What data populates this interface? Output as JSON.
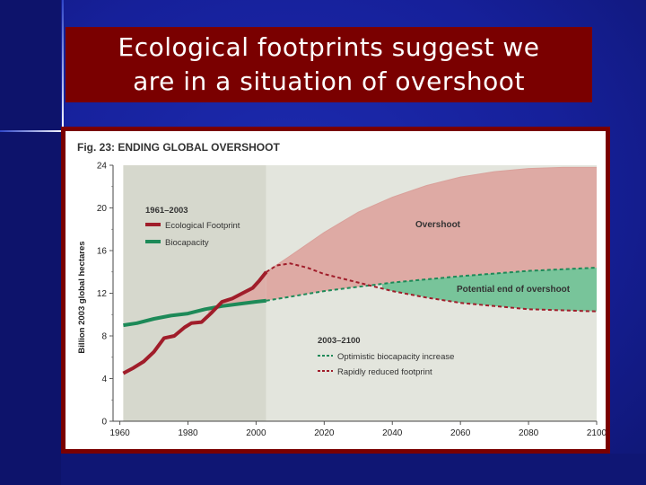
{
  "slide": {
    "title_line1": "Ecological footprints suggest we",
    "title_line2": "are in a situation of overshoot"
  },
  "colors": {
    "footprint": "#a01d2a",
    "biocapacity": "#1d8a58",
    "overshoot_fill": "#deaaa4",
    "deficit_fill": "#78c49a",
    "past_band": "#d6d8cd",
    "future_band": "#e3e5dd"
  },
  "chart_data": {
    "type": "line",
    "title": "Fig. 23: ENDING GLOBAL OVERSHOOT",
    "ylabel": "Billion 2003 global hectares",
    "xlabel": "",
    "xlim": [
      1958,
      2100
    ],
    "ylim": [
      0,
      24
    ],
    "x_ticks": [
      "1960",
      "1980",
      "2000",
      "2020",
      "2040",
      "2060",
      "2080",
      "2100"
    ],
    "y_ticks": [
      "0",
      "4",
      "8",
      "12",
      "16",
      "20",
      "24"
    ],
    "historical_period": [
      1961,
      2003
    ],
    "legend_historical": {
      "title": "1961–2003",
      "items": [
        "Ecological Footprint",
        "Biocapacity"
      ]
    },
    "legend_projection": {
      "title": "2003–2100",
      "items": [
        "Optimistic biocapacity increase",
        "Rapidly reduced footprint"
      ]
    },
    "annotations": [
      "Overshoot",
      "Potential end of overshoot"
    ],
    "series": [
      {
        "name": "Ecological Footprint",
        "values": [
          [
            1961,
            4.5
          ],
          [
            1964,
            5.0
          ],
          [
            1967,
            5.6
          ],
          [
            1970,
            6.5
          ],
          [
            1973,
            7.8
          ],
          [
            1976,
            8.0
          ],
          [
            1979,
            8.8
          ],
          [
            1981,
            9.2
          ],
          [
            1984,
            9.3
          ],
          [
            1987,
            10.2
          ],
          [
            1990,
            11.2
          ],
          [
            1993,
            11.5
          ],
          [
            1996,
            12.0
          ],
          [
            1999,
            12.5
          ],
          [
            2001,
            13.2
          ],
          [
            2003,
            14.0
          ]
        ]
      },
      {
        "name": "Biocapacity",
        "values": [
          [
            1961,
            9.0
          ],
          [
            1965,
            9.2
          ],
          [
            1970,
            9.6
          ],
          [
            1975,
            9.9
          ],
          [
            1980,
            10.1
          ],
          [
            1985,
            10.5
          ],
          [
            1990,
            10.8
          ],
          [
            1995,
            11.0
          ],
          [
            2000,
            11.2
          ],
          [
            2003,
            11.3
          ]
        ]
      },
      {
        "name": "Optimistic biocapacity increase",
        "values": [
          [
            2003,
            11.3
          ],
          [
            2020,
            12.2
          ],
          [
            2040,
            13.0
          ],
          [
            2060,
            13.6
          ],
          [
            2080,
            14.1
          ],
          [
            2100,
            14.4
          ]
        ]
      },
      {
        "name": "Rapidly reduced footprint",
        "values": [
          [
            2003,
            14.0
          ],
          [
            2006,
            14.6
          ],
          [
            2010,
            14.8
          ],
          [
            2015,
            14.4
          ],
          [
            2020,
            13.8
          ],
          [
            2030,
            13.0
          ],
          [
            2040,
            12.2
          ],
          [
            2050,
            11.6
          ],
          [
            2060,
            11.1
          ],
          [
            2070,
            10.8
          ],
          [
            2080,
            10.5
          ],
          [
            2090,
            10.4
          ],
          [
            2100,
            10.3
          ]
        ]
      },
      {
        "name": "Overshoot envelope",
        "values": [
          [
            2003,
            14.0
          ],
          [
            2010,
            15.5
          ],
          [
            2020,
            17.7
          ],
          [
            2030,
            19.6
          ],
          [
            2040,
            21.0
          ],
          [
            2050,
            22.1
          ],
          [
            2060,
            22.9
          ],
          [
            2070,
            23.4
          ],
          [
            2080,
            23.7
          ],
          [
            2090,
            23.8
          ],
          [
            2100,
            23.8
          ]
        ]
      }
    ]
  }
}
